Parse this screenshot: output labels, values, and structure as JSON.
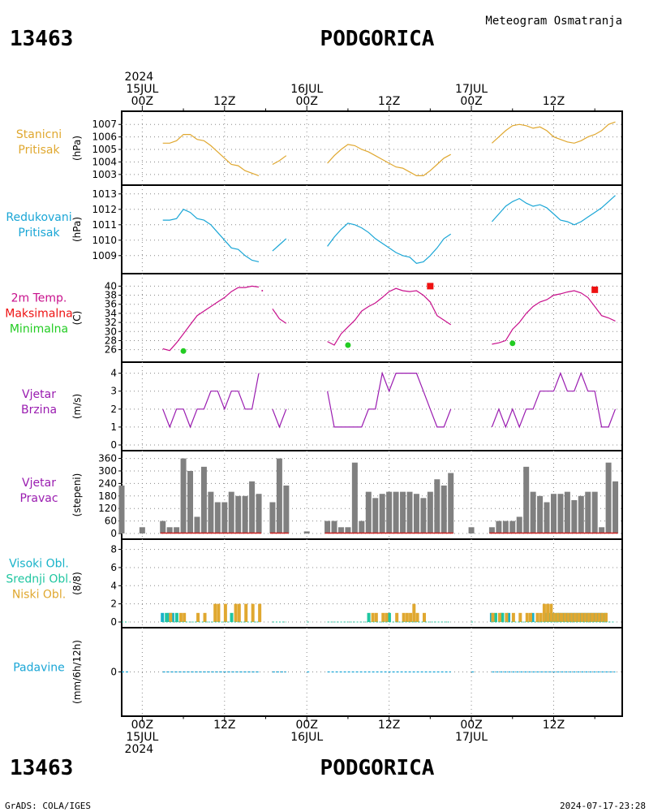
{
  "header": {
    "station_id": "13463",
    "station_name": "PODGORICA",
    "subtitle": "Meteogram Osmatranja"
  },
  "time_axis": {
    "year": "2024",
    "top_labels": [
      {
        "hour": 0,
        "lines": [
          "2024",
          "15JUL",
          "00Z"
        ]
      },
      {
        "hour": 12,
        "lines": [
          "12Z"
        ]
      },
      {
        "hour": 24,
        "lines": [
          "16JUL",
          "00Z"
        ]
      },
      {
        "hour": 36,
        "lines": [
          "12Z"
        ]
      },
      {
        "hour": 48,
        "lines": [
          "17JUL",
          "00Z"
        ]
      },
      {
        "hour": 60,
        "lines": [
          "12Z"
        ]
      }
    ],
    "bottom_labels": [
      {
        "hour": 0,
        "lines": [
          "00Z",
          "15JUL",
          "2024"
        ]
      },
      {
        "hour": 12,
        "lines": [
          "12Z"
        ]
      },
      {
        "hour": 24,
        "lines": [
          "00Z",
          "16JUL"
        ]
      },
      {
        "hour": 36,
        "lines": [
          "12Z"
        ]
      },
      {
        "hour": 48,
        "lines": [
          "00Z",
          "17JUL"
        ]
      },
      {
        "hour": 60,
        "lines": [
          "12Z"
        ]
      }
    ],
    "range_hours": [
      -3,
      70
    ]
  },
  "colors": {
    "station_pressure": "#e0a830",
    "reduced_pressure": "#1aa6d6",
    "temperature": "#c8108c",
    "tmax": "#ee1111",
    "tmin": "#22cc22",
    "wind_speed": "#9a1cb0",
    "wind_dir_label": "#9a1cb0",
    "wind_dir_bars": "#808080",
    "wind_calm_line": "#cc2222",
    "cloud_high": "#19b3c9",
    "cloud_mid": "#1fc6a0",
    "cloud_low": "#e0a830",
    "precip": "#1aa6d6",
    "grid": "#888888"
  },
  "chart_data": [
    {
      "type": "line",
      "panel": "station_pressure",
      "labels": [
        "Stanicni",
        "Pritisak"
      ],
      "ylabel": "(hPa)",
      "ylim": [
        1002.6,
        1007.6
      ],
      "ticks": [
        1003,
        1004,
        1005,
        1006,
        1007
      ],
      "segments": [
        {
          "x": [
            3,
            4,
            5,
            6,
            7,
            8,
            9,
            10,
            11,
            12,
            13,
            14,
            15,
            16,
            17
          ],
          "y": [
            1005.5,
            1005.5,
            1005.7,
            1006.2,
            1006.2,
            1005.8,
            1005.7,
            1005.3,
            1004.8,
            1004.3,
            1003.8,
            1003.7,
            1003.3,
            1003.1,
            1002.9
          ]
        },
        {
          "x": [
            19,
            20,
            21
          ],
          "y": [
            1003.8,
            1004.1,
            1004.5
          ]
        },
        {
          "x": [
            27,
            28,
            29,
            30,
            31,
            32,
            33,
            34,
            35,
            36,
            37,
            38,
            39,
            40,
            41,
            42,
            43,
            44,
            45
          ],
          "y": [
            1003.9,
            1004.5,
            1005.0,
            1005.4,
            1005.3,
            1005.0,
            1004.8,
            1004.5,
            1004.2,
            1003.9,
            1003.6,
            1003.5,
            1003.2,
            1002.9,
            1002.9,
            1003.3,
            1003.8,
            1004.3,
            1004.6
          ]
        },
        {
          "x": [
            51,
            52,
            53,
            54,
            55,
            56,
            57,
            58,
            59,
            60,
            61,
            62,
            63,
            64,
            65,
            66,
            67,
            68,
            69
          ],
          "y": [
            1005.5,
            1006.0,
            1006.5,
            1006.9,
            1007.0,
            1006.9,
            1006.7,
            1006.8,
            1006.5,
            1006.0,
            1005.8,
            1005.6,
            1005.5,
            1005.7,
            1006.0,
            1006.2,
            1006.5,
            1007.0,
            1007.2
          ]
        }
      ]
    },
    {
      "type": "line",
      "panel": "reduced_pressure",
      "labels": [
        "Redukovani",
        "Pritisak"
      ],
      "ylabel": "(hPa)",
      "ylim": [
        1008.2,
        1013.2
      ],
      "ticks": [
        1009,
        1010,
        1011,
        1012,
        1013
      ],
      "segments": [
        {
          "x": [
            3,
            4,
            5,
            6,
            7,
            8,
            9,
            10,
            11,
            12,
            13,
            14,
            15,
            16,
            17
          ],
          "y": [
            1011.3,
            1011.3,
            1011.4,
            1012.0,
            1011.8,
            1011.4,
            1011.3,
            1011.0,
            1010.5,
            1010.0,
            1009.5,
            1009.4,
            1009.0,
            1008.7,
            1008.6
          ]
        },
        {
          "x": [
            19,
            20,
            21
          ],
          "y": [
            1009.3,
            1009.7,
            1010.1
          ]
        },
        {
          "x": [
            27,
            28,
            29,
            30,
            31,
            32,
            33,
            34,
            35,
            36,
            37,
            38,
            39,
            40,
            41,
            42,
            43,
            44,
            45
          ],
          "y": [
            1009.6,
            1010.2,
            1010.7,
            1011.1,
            1011.0,
            1010.8,
            1010.5,
            1010.1,
            1009.8,
            1009.5,
            1009.2,
            1009.0,
            1008.9,
            1008.5,
            1008.6,
            1009.0,
            1009.5,
            1010.1,
            1010.4
          ]
        },
        {
          "x": [
            51,
            52,
            53,
            54,
            55,
            56,
            57,
            58,
            59,
            60,
            61,
            62,
            63,
            64,
            65,
            66,
            67,
            68,
            69
          ],
          "y": [
            1011.2,
            1011.7,
            1012.2,
            1012.5,
            1012.7,
            1012.4,
            1012.2,
            1012.3,
            1012.1,
            1011.7,
            1011.3,
            1011.2,
            1011.0,
            1011.2,
            1011.5,
            1011.8,
            1012.1,
            1012.5,
            1012.9
          ]
        }
      ]
    },
    {
      "type": "line",
      "panel": "temperature",
      "labels": [
        "2m Temp.",
        "Maksimalna",
        "Minimalna"
      ],
      "ylabel": "(C)",
      "ylim": [
        24.5,
        41.5
      ],
      "ticks": [
        26,
        28,
        30,
        32,
        34,
        36,
        38,
        40
      ],
      "segments": [
        {
          "x": [
            3,
            4,
            5,
            6,
            7,
            8,
            9,
            10,
            11,
            12,
            13,
            14,
            15,
            16,
            17
          ],
          "y": [
            26.2,
            25.8,
            27.5,
            29.5,
            31.5,
            33.5,
            34.5,
            35.5,
            36.5,
            37.5,
            38.8,
            39.7,
            39.7,
            40.0,
            39.8
          ]
        },
        {
          "x": [
            17.5
          ],
          "y": [
            39.0
          ]
        },
        {
          "x": [
            19,
            20,
            21
          ],
          "y": [
            35.0,
            32.8,
            31.8
          ]
        },
        {
          "x": [
            27,
            28,
            29,
            30,
            31,
            32,
            33,
            34,
            35,
            36,
            37,
            38,
            39,
            40,
            41,
            42,
            43,
            44,
            45
          ],
          "y": [
            27.8,
            27.0,
            29.5,
            31.0,
            32.5,
            34.5,
            35.5,
            36.3,
            37.5,
            38.8,
            39.5,
            39.0,
            38.8,
            39.0,
            38.0,
            36.5,
            33.5,
            32.5,
            31.5
          ]
        },
        {
          "x": [
            51,
            52,
            53,
            54,
            55,
            56,
            57,
            58,
            59,
            60,
            61,
            62,
            63,
            64,
            65,
            66,
            67,
            68,
            69
          ],
          "y": [
            27.2,
            27.5,
            28.0,
            30.5,
            32.0,
            34.0,
            35.5,
            36.5,
            37.0,
            38.0,
            38.3,
            38.7,
            39.0,
            38.5,
            37.5,
            35.5,
            33.5,
            33.0,
            32.3
          ]
        }
      ],
      "tmax_points": [
        {
          "x": 42,
          "y": 40.0
        },
        {
          "x": 66,
          "y": 39.2
        }
      ],
      "tmin_points": [
        {
          "x": 6,
          "y": 25.7
        },
        {
          "x": 30,
          "y": 27.0
        },
        {
          "x": 54,
          "y": 27.4
        }
      ]
    },
    {
      "type": "line",
      "panel": "wind_speed",
      "labels": [
        "Vjetar",
        "Brzina"
      ],
      "ylabel": "(m/s)",
      "ylim": [
        0,
        4.3
      ],
      "ticks": [
        0,
        1,
        2,
        3,
        4
      ],
      "segments": [
        {
          "x": [
            3,
            4,
            5,
            6,
            7,
            8,
            9,
            10,
            11,
            12,
            13,
            14,
            15,
            16,
            17
          ],
          "y": [
            2,
            1,
            2,
            2,
            1,
            2,
            2,
            3,
            3,
            2,
            3,
            3,
            2,
            2,
            4
          ]
        },
        {
          "x": [
            19,
            20,
            21
          ],
          "y": [
            2,
            1,
            2
          ]
        },
        {
          "x": [
            27,
            28,
            29,
            30,
            31,
            32,
            33,
            34,
            35,
            36,
            37,
            38,
            39,
            40,
            41,
            42,
            43,
            44,
            45
          ],
          "y": [
            3,
            1,
            1,
            1,
            1,
            1,
            2,
            2,
            4,
            3,
            4,
            4,
            4,
            4,
            3,
            2,
            1,
            1,
            2
          ]
        },
        {
          "x": [
            51,
            52,
            53,
            54,
            55,
            56,
            57,
            58,
            59,
            60,
            61,
            62,
            63,
            64,
            65,
            66,
            67,
            68,
            69
          ],
          "y": [
            1,
            2,
            1,
            2,
            1,
            2,
            2,
            3,
            3,
            3,
            4,
            3,
            3,
            4,
            3,
            3,
            1,
            1,
            2
          ]
        }
      ]
    },
    {
      "type": "bar",
      "panel": "wind_direction",
      "labels": [
        "Vjetar",
        "Pravac"
      ],
      "ylabel": "(stepeni)",
      "ylim": [
        0,
        370
      ],
      "ticks": [
        0,
        60,
        120,
        180,
        240,
        300,
        360
      ],
      "x": [
        -3,
        0,
        3,
        4,
        5,
        6,
        7,
        8,
        9,
        10,
        11,
        12,
        13,
        14,
        15,
        16,
        17,
        19,
        20,
        21,
        24,
        27,
        28,
        29,
        30,
        31,
        32,
        33,
        34,
        35,
        36,
        37,
        38,
        39,
        40,
        41,
        42,
        43,
        44,
        45,
        48,
        51,
        52,
        53,
        54,
        55,
        56,
        57,
        58,
        59,
        60,
        61,
        62,
        63,
        64,
        65,
        66,
        67,
        68,
        69
      ],
      "values": [
        230,
        30,
        60,
        30,
        30,
        360,
        300,
        80,
        320,
        200,
        150,
        150,
        200,
        180,
        180,
        250,
        190,
        150,
        360,
        230,
        10,
        60,
        60,
        30,
        30,
        340,
        60,
        200,
        170,
        190,
        200,
        200,
        200,
        200,
        190,
        170,
        200,
        260,
        230,
        290,
        30,
        30,
        60,
        60,
        60,
        80,
        320,
        200,
        180,
        150,
        190,
        190,
        200,
        160,
        180,
        200,
        200,
        30,
        340,
        250
      ]
    },
    {
      "type": "bar",
      "panel": "cloud_cover",
      "labels": [
        "Visoki Obl.",
        "Srednji Obl.",
        "Niski Obl."
      ],
      "ylabel": "(8/8)",
      "ylim": [
        0,
        8.5
      ],
      "ticks": [
        0,
        2,
        4,
        6,
        8
      ],
      "series": [
        {
          "name": "Visoki Obl.",
          "x": [
            3,
            4,
            4.5,
            51,
            52.5,
            53.5,
            57,
            59,
            60,
            61,
            61.5,
            62,
            62.5,
            63,
            63.5,
            64,
            64.5,
            65,
            65.5,
            66,
            66.5,
            67
          ],
          "values": [
            1,
            1,
            1,
            1,
            1,
            1,
            1,
            1,
            1,
            1,
            1,
            1,
            1,
            1,
            1,
            1,
            1,
            1,
            1,
            1,
            1,
            1
          ]
        },
        {
          "name": "Srednji Obl.",
          "x": [
            3.5,
            5,
            13,
            33,
            36,
            51.5,
            52.5,
            59.5,
            60.5,
            67.5
          ],
          "values": [
            1,
            1,
            1,
            1,
            1,
            1,
            1,
            1,
            1,
            1
          ]
        },
        {
          "name": "Niski Obl.",
          "x": [
            4,
            5.5,
            6,
            8,
            9,
            10.5,
            11,
            12,
            13.5,
            14,
            15,
            16,
            17,
            33.5,
            34,
            35,
            35.5,
            37,
            38,
            38.5,
            39,
            39.5,
            40,
            41,
            51,
            52,
            53,
            54,
            55,
            56,
            56.5,
            57.5,
            58,
            58.5,
            59,
            59.5,
            60,
            60.5,
            61,
            61.5,
            62,
            62.5,
            63,
            63.5,
            64,
            64.5,
            65,
            65.5,
            66,
            66.5,
            67,
            67.5
          ],
          "values": [
            1,
            1,
            1,
            1,
            1,
            2,
            2,
            2,
            2,
            2,
            2,
            2,
            2,
            1,
            1,
            1,
            1,
            1,
            1,
            1,
            1,
            2,
            1,
            1,
            1,
            1,
            1,
            1,
            1,
            1,
            1,
            1,
            1,
            2,
            2,
            2,
            1,
            1,
            1,
            1,
            1,
            1,
            1,
            1,
            1,
            1,
            1,
            1,
            1,
            1,
            1,
            1
          ]
        }
      ]
    },
    {
      "type": "line",
      "panel": "precipitation",
      "labels": [
        "Padavine"
      ],
      "ylabel": "(mm/6h/12h)",
      "ylim": [
        -1,
        1
      ],
      "ticks": [
        0
      ],
      "segments": [
        {
          "x": [
            -3,
            -2
          ],
          "y": [
            0,
            0
          ]
        },
        {
          "x": [
            3,
            17
          ],
          "y": [
            0,
            0
          ]
        },
        {
          "x": [
            19,
            21
          ],
          "y": [
            0,
            0
          ]
        },
        {
          "x": [
            24,
            24.5
          ],
          "y": [
            0,
            0
          ]
        },
        {
          "x": [
            27,
            45
          ],
          "y": [
            0,
            0
          ]
        },
        {
          "x": [
            48,
            48.5
          ],
          "y": [
            0,
            0
          ]
        },
        {
          "x": [
            51,
            69
          ],
          "y": [
            0,
            0
          ]
        }
      ]
    }
  ],
  "footer": {
    "left": "GrADS: COLA/IGES",
    "right": "2024-07-17-23:28"
  }
}
